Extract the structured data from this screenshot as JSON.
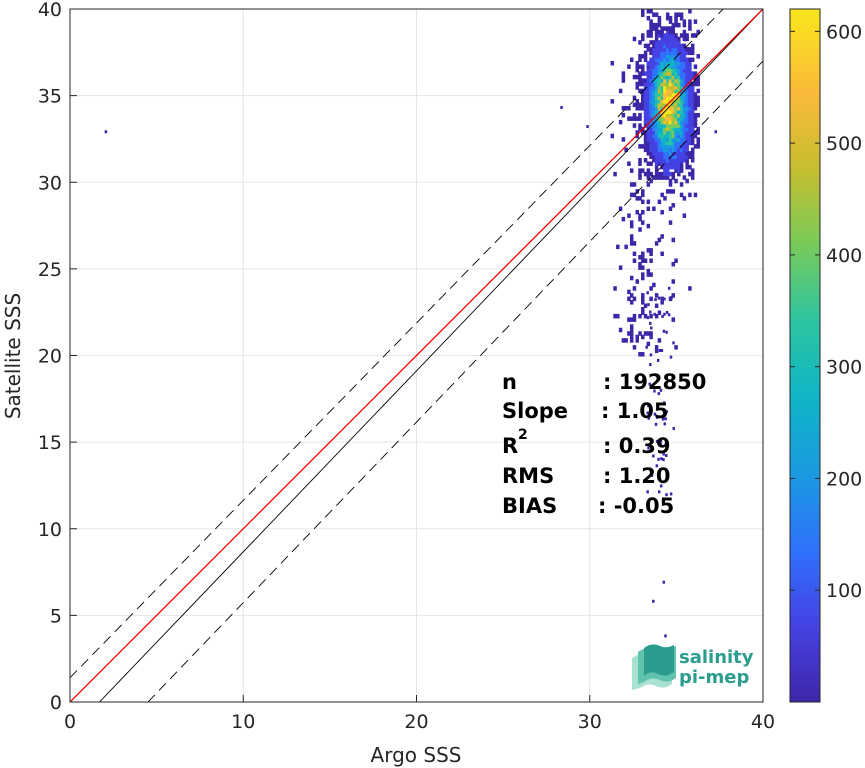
{
  "chart_data": {
    "type": "heatmap",
    "title": "",
    "xlabel": "Argo SSS",
    "ylabel": "Satellite SSS",
    "xlim": [
      0,
      40
    ],
    "ylim": [
      0,
      40
    ],
    "x_ticks": [
      "0",
      "10",
      "20",
      "30",
      "40"
    ],
    "y_ticks": [
      "0",
      "5",
      "10",
      "15",
      "20",
      "25",
      "30",
      "35",
      "40"
    ],
    "grid": true,
    "colorbar": {
      "range": [
        0,
        620
      ],
      "ticks": [
        "100",
        "200",
        "300",
        "400",
        "500",
        "600"
      ],
      "colormap": "parula",
      "colors": [
        "#3e26a8",
        "#4542e3",
        "#2f72fb",
        "#1a9ae0",
        "#10b5c7",
        "#2dc5a0",
        "#77cb5a",
        "#c7be2f",
        "#fbba3a",
        "#f8e61b"
      ]
    },
    "density_cloud": {
      "center": [
        34.5,
        34.5
      ],
      "core_x_range": [
        32,
        36
      ],
      "core_y_range": [
        24,
        40
      ],
      "peak_count": 620,
      "outliers": [
        [
          2,
          33
        ],
        [
          28.3,
          34.4
        ],
        [
          29.8,
          33.3
        ],
        [
          37.2,
          33
        ],
        [
          33.6,
          5.9
        ],
        [
          34.3,
          3.9
        ],
        [
          34.6,
          11.2
        ],
        [
          34.2,
          7.0
        ]
      ]
    },
    "reference_lines": [
      {
        "label": "1:1",
        "color": "#000000",
        "style": "solid",
        "points": [
          [
            1.7,
            0
          ],
          [
            40,
            40
          ]
        ]
      },
      {
        "label": "fit",
        "color": "#e00000",
        "style": "solid",
        "points": [
          [
            0,
            0
          ],
          [
            40,
            40
          ]
        ]
      },
      {
        "label": "upper",
        "color": "#000000",
        "style": "dashed",
        "points": [
          [
            0,
            1.4
          ],
          [
            37.7,
            40
          ]
        ]
      },
      {
        "label": "lower",
        "color": "#000000",
        "style": "dashed",
        "points": [
          [
            4.5,
            0
          ],
          [
            40,
            37
          ]
        ]
      }
    ],
    "stats": [
      {
        "name": "n",
        "value": ": 192850"
      },
      {
        "name": "Slope",
        "value": ": 1.05"
      },
      {
        "name": "R",
        "sup": "2",
        "value": ": 0.39"
      },
      {
        "name": "RMS",
        "value": ": 1.20"
      },
      {
        "name": "BIAS",
        "value": ": -0.05"
      }
    ]
  },
  "logo": {
    "line1": "salinity",
    "line2": "pi-mep"
  }
}
